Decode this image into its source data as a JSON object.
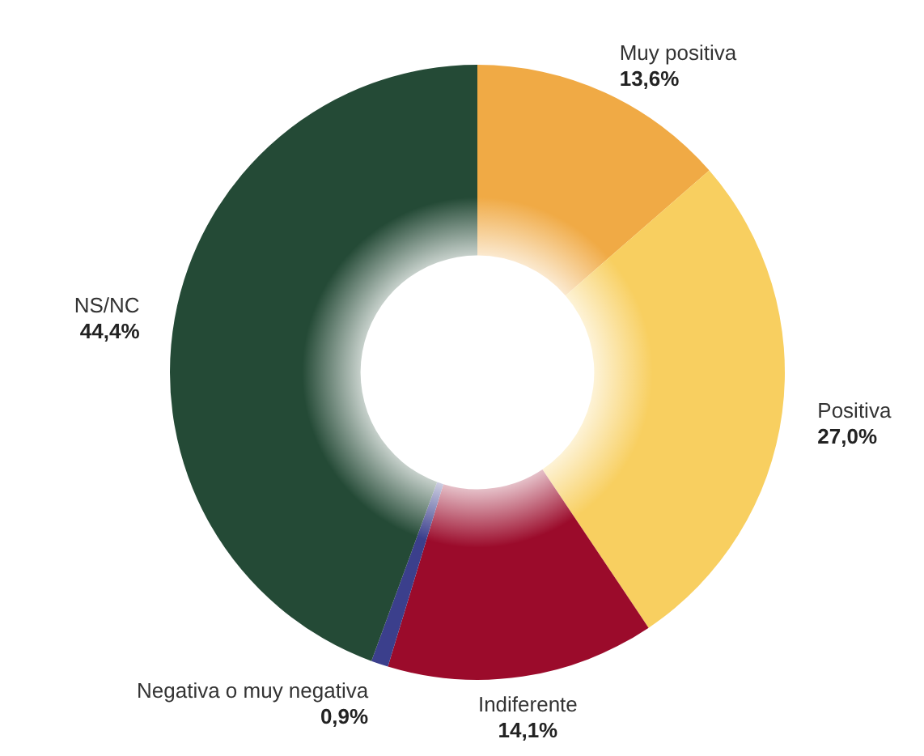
{
  "chart_data": {
    "type": "donut",
    "categories": [
      "Muy positiva",
      "Positiva",
      "Indiferente",
      "Negativa o muy negativa",
      "NS/NC"
    ],
    "values": [
      13.6,
      27.0,
      14.1,
      0.9,
      44.4
    ],
    "value_labels": [
      "13,6%",
      "27,0%",
      "14,1%",
      "0,9%",
      "44,4%"
    ],
    "colors": [
      "#f0aa45",
      "#f8cf60",
      "#9b0b2b",
      "#3b3f8c",
      "#244a36"
    ]
  }
}
